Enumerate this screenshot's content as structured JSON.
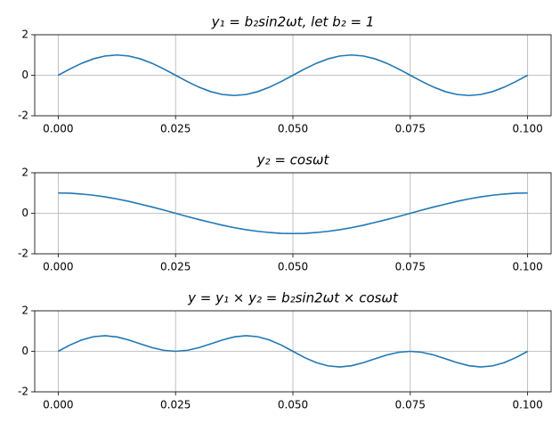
{
  "chart_data": [
    {
      "type": "line",
      "title": "y₁ = b₂sin2ωt, let b₂ = 1",
      "x": [
        0,
        0.0025,
        0.005,
        0.0075,
        0.01,
        0.0125,
        0.015,
        0.0175,
        0.02,
        0.0225,
        0.025,
        0.0275,
        0.03,
        0.0325,
        0.035,
        0.0375,
        0.04,
        0.0425,
        0.045,
        0.0475,
        0.05,
        0.0525,
        0.055,
        0.0575,
        0.06,
        0.0625,
        0.065,
        0.0675,
        0.07,
        0.0725,
        0.075,
        0.0775,
        0.08,
        0.0825,
        0.085,
        0.0875,
        0.09,
        0.0925,
        0.095,
        0.0975,
        0.1
      ],
      "values": [
        0,
        0.31,
        0.59,
        0.81,
        0.95,
        1,
        0.95,
        0.81,
        0.59,
        0.31,
        0,
        -0.31,
        -0.59,
        -0.81,
        -0.95,
        -1,
        -0.95,
        -0.81,
        -0.59,
        -0.31,
        0,
        0.31,
        0.59,
        0.81,
        0.95,
        1,
        0.95,
        0.81,
        0.59,
        0.31,
        0,
        -0.31,
        -0.59,
        -0.81,
        -0.95,
        -1,
        -0.95,
        -0.81,
        -0.59,
        -0.31,
        0
      ],
      "color": "#1f77b4",
      "xlim": [
        -0.005,
        0.105
      ],
      "ylim": [
        -2,
        2
      ],
      "xticks": [
        {
          "value": 0,
          "label": "0.000"
        },
        {
          "value": 0.025,
          "label": "0.025"
        },
        {
          "value": 0.05,
          "label": "0.050"
        },
        {
          "value": 0.075,
          "label": "0.075"
        },
        {
          "value": 0.1,
          "label": "0.100"
        }
      ],
      "yticks": [
        -2,
        0,
        2
      ],
      "grid": true
    },
    {
      "type": "line",
      "title": "y₂ = cosωt",
      "x": [
        0,
        0.0025,
        0.005,
        0.0075,
        0.01,
        0.0125,
        0.015,
        0.0175,
        0.02,
        0.0225,
        0.025,
        0.0275,
        0.03,
        0.0325,
        0.035,
        0.0375,
        0.04,
        0.0425,
        0.045,
        0.0475,
        0.05,
        0.0525,
        0.055,
        0.0575,
        0.06,
        0.0625,
        0.065,
        0.0675,
        0.07,
        0.0725,
        0.075,
        0.0775,
        0.08,
        0.0825,
        0.085,
        0.0875,
        0.09,
        0.0925,
        0.095,
        0.0975,
        0.1
      ],
      "values": [
        1,
        0.99,
        0.95,
        0.89,
        0.81,
        0.71,
        0.59,
        0.45,
        0.31,
        0.16,
        0,
        -0.16,
        -0.31,
        -0.45,
        -0.59,
        -0.71,
        -0.81,
        -0.89,
        -0.95,
        -0.99,
        -1,
        -0.99,
        -0.95,
        -0.89,
        -0.81,
        -0.71,
        -0.59,
        -0.45,
        -0.31,
        -0.16,
        0,
        0.16,
        0.31,
        0.45,
        0.59,
        0.71,
        0.81,
        0.89,
        0.95,
        0.99,
        1
      ],
      "color": "#1f77b4",
      "xlim": [
        -0.005,
        0.105
      ],
      "ylim": [
        -2,
        2
      ],
      "xticks": [
        {
          "value": 0,
          "label": "0.000"
        },
        {
          "value": 0.025,
          "label": "0.025"
        },
        {
          "value": 0.05,
          "label": "0.050"
        },
        {
          "value": 0.075,
          "label": "0.075"
        },
        {
          "value": 0.1,
          "label": "0.100"
        }
      ],
      "yticks": [
        -2,
        0,
        2
      ],
      "grid": true
    },
    {
      "type": "line",
      "title": "y = y₁ × y₂ = b₂sin2ωt × cosωt",
      "x": [
        0,
        0.0025,
        0.005,
        0.0075,
        0.01,
        0.0125,
        0.015,
        0.0175,
        0.02,
        0.0225,
        0.025,
        0.0275,
        0.03,
        0.0325,
        0.035,
        0.0375,
        0.04,
        0.0425,
        0.045,
        0.0475,
        0.05,
        0.0525,
        0.055,
        0.0575,
        0.06,
        0.0625,
        0.065,
        0.0675,
        0.07,
        0.0725,
        0.075,
        0.0775,
        0.08,
        0.0825,
        0.085,
        0.0875,
        0.09,
        0.0925,
        0.095,
        0.0975,
        0.1
      ],
      "values": [
        0,
        0.31,
        0.56,
        0.72,
        0.77,
        0.71,
        0.56,
        0.37,
        0.18,
        0.05,
        0,
        0.05,
        0.18,
        0.37,
        0.56,
        0.71,
        0.77,
        0.72,
        0.56,
        0.31,
        0,
        -0.31,
        -0.56,
        -0.72,
        -0.77,
        -0.71,
        -0.56,
        -0.37,
        -0.18,
        -0.05,
        0,
        -0.05,
        -0.18,
        -0.37,
        -0.56,
        -0.71,
        -0.77,
        -0.72,
        -0.56,
        -0.31,
        0
      ],
      "color": "#1f77b4",
      "xlim": [
        -0.005,
        0.105
      ],
      "ylim": [
        -2,
        2
      ],
      "xticks": [
        {
          "value": 0,
          "label": "0.000"
        },
        {
          "value": 0.025,
          "label": "0.025"
        },
        {
          "value": 0.05,
          "label": "0.050"
        },
        {
          "value": 0.075,
          "label": "0.075"
        },
        {
          "value": 0.1,
          "label": "0.100"
        }
      ],
      "yticks": [
        -2,
        0,
        2
      ],
      "grid": true
    }
  ]
}
